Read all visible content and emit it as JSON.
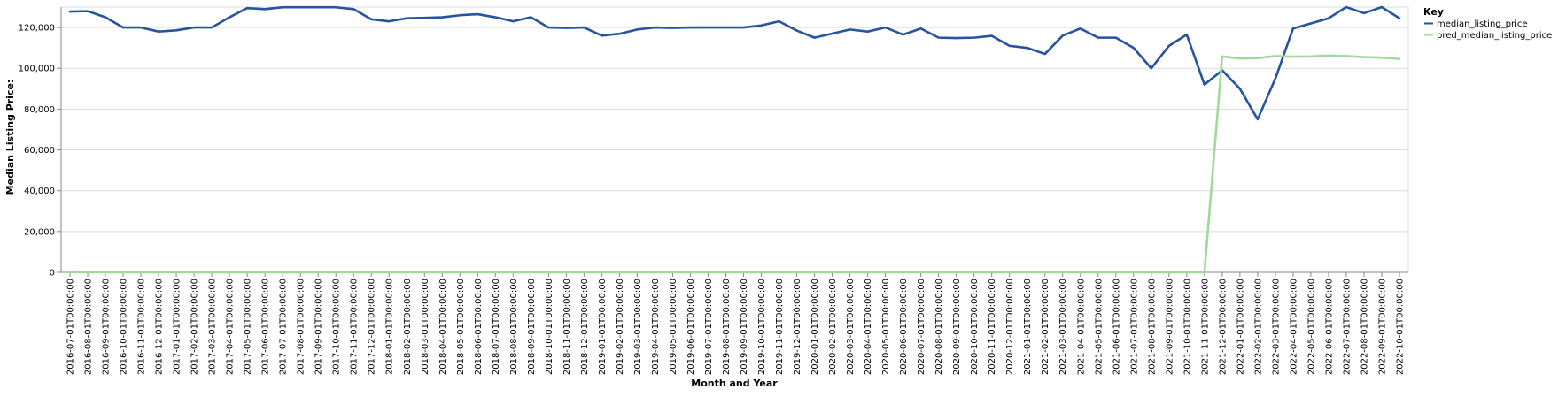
{
  "chart_data": {
    "type": "line",
    "xlabel": "Month and Year",
    "ylabel": "Median Listing Price:",
    "ylim": [
      0,
      130000
    ],
    "yticks": [
      0,
      20000,
      40000,
      60000,
      80000,
      100000,
      120000
    ],
    "ytick_labels": [
      "0",
      "20,000",
      "40,000",
      "60,000",
      "80,000",
      "100,000",
      "120,000"
    ],
    "grid": true,
    "legend": {
      "title": "Key",
      "placement": "top-right"
    },
    "x": [
      "2016-07-01T00:00:00",
      "2016-08-01T00:00:00",
      "2016-09-01T00:00:00",
      "2016-10-01T00:00:00",
      "2016-11-01T00:00:00",
      "2016-12-01T00:00:00",
      "2017-01-01T00:00:00",
      "2017-02-01T00:00:00",
      "2017-03-01T00:00:00",
      "2017-04-01T00:00:00",
      "2017-05-01T00:00:00",
      "2017-06-01T00:00:00",
      "2017-07-01T00:00:00",
      "2017-08-01T00:00:00",
      "2017-09-01T00:00:00",
      "2017-10-01T00:00:00",
      "2017-11-01T00:00:00",
      "2017-12-01T00:00:00",
      "2018-01-01T00:00:00",
      "2018-02-01T00:00:00",
      "2018-03-01T00:00:00",
      "2018-04-01T00:00:00",
      "2018-05-01T00:00:00",
      "2018-06-01T00:00:00",
      "2018-07-01T00:00:00",
      "2018-08-01T00:00:00",
      "2018-09-01T00:00:00",
      "2018-10-01T00:00:00",
      "2018-11-01T00:00:00",
      "2018-12-01T00:00:00",
      "2019-01-01T00:00:00",
      "2019-02-01T00:00:00",
      "2019-03-01T00:00:00",
      "2019-04-01T00:00:00",
      "2019-05-01T00:00:00",
      "2019-06-01T00:00:00",
      "2019-07-01T00:00:00",
      "2019-08-01T00:00:00",
      "2019-09-01T00:00:00",
      "2019-10-01T00:00:00",
      "2019-11-01T00:00:00",
      "2019-12-01T00:00:00",
      "2020-01-01T00:00:00",
      "2020-02-01T00:00:00",
      "2020-03-01T00:00:00",
      "2020-04-01T00:00:00",
      "2020-05-01T00:00:00",
      "2020-06-01T00:00:00",
      "2020-07-01T00:00:00",
      "2020-08-01T00:00:00",
      "2020-09-01T00:00:00",
      "2020-10-01T00:00:00",
      "2020-11-01T00:00:00",
      "2020-12-01T00:00:00",
      "2021-01-01T00:00:00",
      "2021-02-01T00:00:00",
      "2021-03-01T00:00:00",
      "2021-04-01T00:00:00",
      "2021-05-01T00:00:00",
      "2021-06-01T00:00:00",
      "2021-07-01T00:00:00",
      "2021-08-01T00:00:00",
      "2021-09-01T00:00:00",
      "2021-10-01T00:00:00",
      "2021-11-01T00:00:00",
      "2021-12-01T00:00:00",
      "2022-01-01T00:00:00",
      "2022-02-01T00:00:00",
      "2022-03-01T00:00:00",
      "2022-04-01T00:00:00",
      "2022-05-01T00:00:00",
      "2022-06-01T00:00:00",
      "2022-07-01T00:00:00",
      "2022-08-01T00:00:00",
      "2022-09-01T00:00:00",
      "2022-10-01T00:00:00"
    ],
    "series": [
      {
        "name": "median_listing_price",
        "color": "#2853a0",
        "values": [
          127800,
          128000,
          125000,
          120000,
          120000,
          118000,
          118600,
          120000,
          120000,
          125000,
          129500,
          129000,
          129900,
          129900,
          129900,
          129900,
          129000,
          124000,
          123000,
          124500,
          124700,
          125000,
          126000,
          126500,
          125000,
          123000,
          125000,
          120000,
          119800,
          120000,
          116000,
          116900,
          119000,
          120000,
          119800,
          120000,
          120000,
          120000,
          120000,
          121000,
          123000,
          118500,
          115000,
          117000,
          119000,
          118000,
          120000,
          116500,
          119500,
          115000,
          114800,
          115000,
          115900,
          111000,
          110000,
          107000,
          116000,
          119500,
          115000,
          115000,
          110000,
          100000,
          111000,
          116500,
          92000,
          99000,
          90000,
          75000,
          95000,
          119500,
          122000,
          124500,
          130000,
          127000,
          130000,
          124500
        ]
      },
      {
        "name": "pred_median_listing_price",
        "color": "#a1d99b",
        "values": [
          0,
          0,
          0,
          0,
          0,
          0,
          0,
          0,
          0,
          0,
          0,
          0,
          0,
          0,
          0,
          0,
          0,
          0,
          0,
          0,
          0,
          0,
          0,
          0,
          0,
          0,
          0,
          0,
          0,
          0,
          0,
          0,
          0,
          0,
          0,
          0,
          0,
          0,
          0,
          0,
          0,
          0,
          0,
          0,
          0,
          0,
          0,
          0,
          0,
          0,
          0,
          0,
          0,
          0,
          0,
          0,
          0,
          0,
          0,
          0,
          0,
          0,
          0,
          0,
          0,
          105800,
          104800,
          105000,
          106000,
          105700,
          105800,
          106200,
          106000,
          105500,
          105200,
          104600
        ]
      }
    ]
  }
}
